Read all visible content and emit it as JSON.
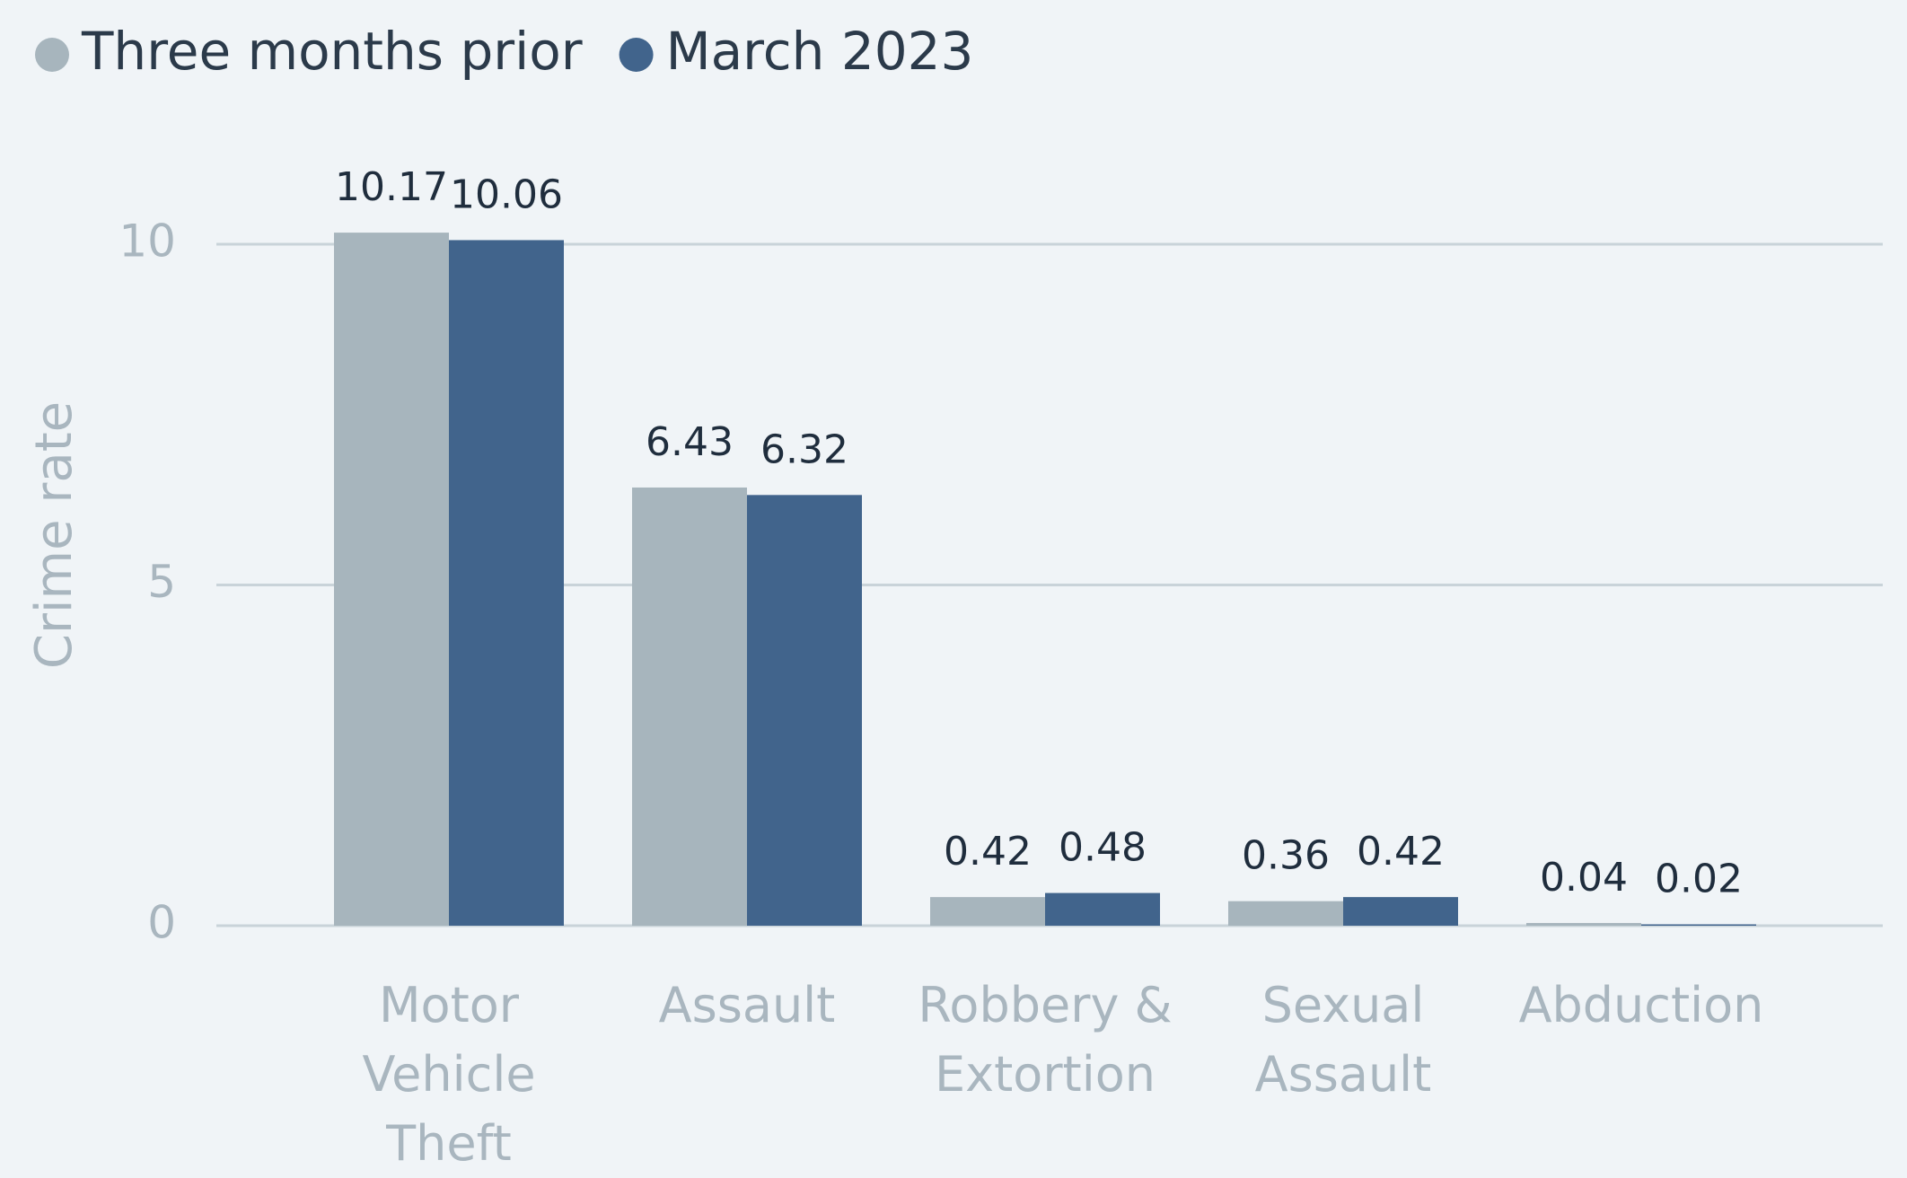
{
  "chart_data": {
    "type": "bar",
    "categories": [
      "Motor\nVehicle\nTheft",
      "Assault",
      "Robbery &\nExtortion",
      "Sexual\nAssault",
      "Abduction"
    ],
    "series": [
      {
        "name": "Three months prior",
        "color": "#a7b5bd",
        "values": [
          10.17,
          6.43,
          0.42,
          0.36,
          0.04
        ]
      },
      {
        "name": "March 2023",
        "color": "#41648c",
        "values": [
          10.06,
          6.32,
          0.48,
          0.42,
          0.02
        ]
      }
    ],
    "ylabel": "Crime rate",
    "ylim": [
      0,
      10.5
    ],
    "yticks": [
      0,
      5,
      10
    ],
    "grid": true,
    "legend": "top-left"
  }
}
